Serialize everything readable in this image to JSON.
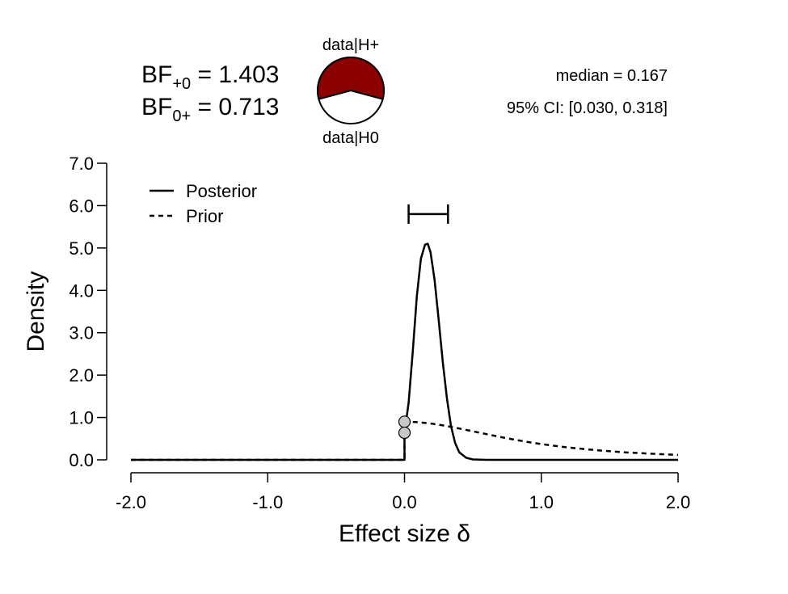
{
  "header": {
    "bf10_label": "BF",
    "bf10_sub": "+0",
    "bf10_eq": " = ",
    "bf10_value": "1.403",
    "bf01_label": "BF",
    "bf01_sub": "0+",
    "bf01_eq": " = ",
    "bf01_value": "0.713",
    "pie_top_label": "data|H+",
    "pie_bottom_label": "data|H0",
    "median_text": "median = 0.167",
    "ci_text": "95% CI: [0.030, 0.318]"
  },
  "colors": {
    "pie_h1": "#8b0000",
    "pie_h0": "#ffffff",
    "point_fill": "#c8c8c8"
  },
  "chart_data": {
    "type": "line",
    "xlabel": "Effect size δ",
    "ylabel": "Density",
    "xlim": [
      -2.0,
      2.0
    ],
    "ylim": [
      0.0,
      7.0
    ],
    "x_ticks": [
      "-2.0",
      "-1.0",
      "0.0",
      "1.0",
      "2.0"
    ],
    "y_ticks": [
      "0.0",
      "1.0",
      "2.0",
      "3.0",
      "4.0",
      "5.0",
      "6.0",
      "7.0"
    ],
    "legend": [
      {
        "name": "Posterior",
        "style": "solid"
      },
      {
        "name": "Prior",
        "style": "dashed"
      }
    ],
    "legend_position": "top-left",
    "grid": false,
    "pie": {
      "H1": 0.584,
      "H0": 0.416
    },
    "credible_interval": {
      "lower": 0.03,
      "upper": 0.318,
      "y": 5.8
    },
    "points_at_zero": [
      {
        "x": 0.0,
        "y": 0.9,
        "label": "prior density at 0"
      },
      {
        "x": 0.0,
        "y": 0.64,
        "label": "posterior density at 0"
      }
    ],
    "series": [
      {
        "name": "Posterior",
        "style": "solid",
        "x": [
          -2.0,
          0.0,
          0.0,
          0.03,
          0.06,
          0.09,
          0.12,
          0.15,
          0.17,
          0.19,
          0.22,
          0.25,
          0.28,
          0.31,
          0.34,
          0.37,
          0.4,
          0.45,
          0.5,
          0.6,
          0.8,
          1.0,
          1.5,
          2.0
        ],
        "y": [
          0.0,
          0.0,
          0.64,
          1.35,
          2.55,
          3.85,
          4.75,
          5.08,
          5.1,
          4.9,
          4.25,
          3.3,
          2.3,
          1.45,
          0.8,
          0.4,
          0.18,
          0.05,
          0.01,
          0.0,
          0.0,
          0.0,
          0.0,
          0.0
        ]
      },
      {
        "name": "Prior",
        "style": "dashed",
        "x": [
          -2.0,
          0.0,
          0.0,
          0.1,
          0.2,
          0.3,
          0.4,
          0.5,
          0.6,
          0.7,
          0.8,
          0.9,
          1.0,
          1.2,
          1.4,
          1.6,
          1.8,
          2.0
        ],
        "y": [
          0.0,
          0.0,
          0.9,
          0.888,
          0.854,
          0.803,
          0.741,
          0.674,
          0.606,
          0.54,
          0.478,
          0.422,
          0.372,
          0.29,
          0.228,
          0.18,
          0.145,
          0.116
        ]
      }
    ]
  }
}
